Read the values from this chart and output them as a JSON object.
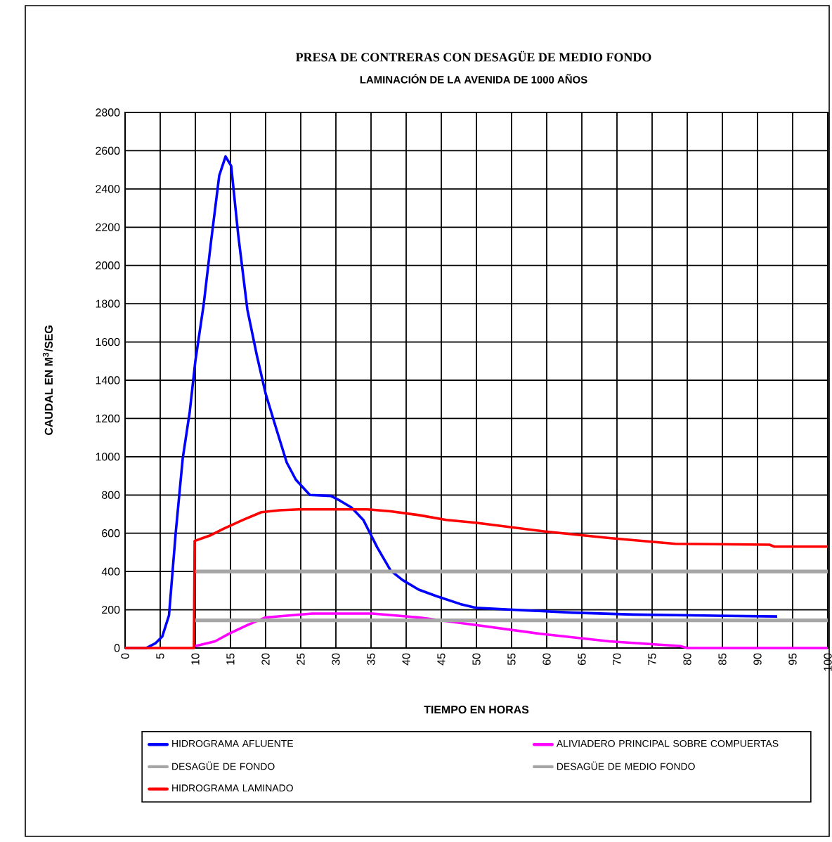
{
  "chart_data": {
    "type": "line",
    "title": "PRESA DE CONTRERAS CON DESAGÜE DE MEDIO FONDO",
    "subtitle": "LAMINACIÓN DE LA AVENIDA DE 1000 AÑOS",
    "xlabel": "TIEMPO EN HORAS",
    "ylabel": "CAUDAL EN M$^{3}$/SEG",
    "xlim": [
      0,
      100
    ],
    "xticks": [
      0,
      5,
      10,
      15,
      20,
      25,
      30,
      35,
      40,
      45,
      50,
      55,
      60,
      65,
      70,
      75,
      80,
      85,
      90,
      95,
      100
    ],
    "ylim": [
      0,
      2800
    ],
    "yticks": [
      0,
      200,
      400,
      600,
      800,
      1000,
      1200,
      1400,
      1600,
      1800,
      2000,
      2200,
      2400,
      2600,
      2800
    ],
    "grid": true,
    "legend": "bottom",
    "marker": "none",
    "line_style": "solid",
    "series": [
      {
        "name": "HIDROGRAMA AFLUENTE",
        "color": "#0000ff",
        "x": [
          0,
          3,
          4.3,
          5.3,
          6.25,
          7.2,
          8.2,
          9.2,
          10,
          11.2,
          12.2,
          13.4,
          14.3,
          15.1,
          16.1,
          17.4,
          18.75,
          20,
          21.4,
          23,
          24.3,
          26.3,
          29.3,
          30.6,
          32.2,
          33.9,
          35.9,
          37.8,
          39.5,
          41.8,
          44.4,
          47.7,
          49.9,
          63.6,
          72.3,
          82.3,
          92.8
        ],
        "values": [
          0,
          0,
          24,
          61,
          171,
          600,
          990,
          1235,
          1500,
          1800,
          2115,
          2470,
          2570,
          2520,
          2160,
          1770,
          1530,
          1330,
          1160,
          970,
          880,
          800,
          795,
          770,
          735,
          670,
          525,
          405,
          355,
          305,
          270,
          230,
          210,
          185,
          175,
          170,
          165
        ]
      },
      {
        "name": "ALIVIADERO PRINCIPAL SOBRE COMPUERTAS",
        "color": "#ff00ff",
        "x": [
          10,
          12.8,
          14.8,
          17.4,
          20,
          26.6,
          35.2,
          41.8,
          49.9,
          58.9,
          68.9,
          79,
          80,
          100
        ],
        "values": [
          10,
          35,
          75,
          120,
          160,
          180,
          180,
          160,
          120,
          75,
          35,
          10,
          0,
          0
        ]
      },
      {
        "name": "DESAGÜE DE FONDO",
        "color": "#a6a6a6",
        "x": [
          10,
          100
        ],
        "values": [
          400,
          400
        ]
      },
      {
        "name": "DESAGÜE DE MEDIO FONDO",
        "color": "#a6a6a6",
        "x": [
          10,
          100
        ],
        "values": [
          145,
          145
        ]
      },
      {
        "name": "HIDROGRAMA LAMINADO",
        "color": "#ff0000",
        "x": [
          0,
          9.8,
          9.9,
          12.2,
          14.1,
          16.8,
          19.4,
          22,
          24.7,
          34.5,
          37.8,
          41.8,
          45.7,
          49.9,
          59.6,
          68.9,
          78.3,
          91.7,
          92.4,
          100
        ],
        "values": [
          0,
          0,
          560,
          590,
          625,
          670,
          710,
          720,
          725,
          725,
          715,
          695,
          670,
          655,
          610,
          575,
          545,
          540,
          530,
          530
        ]
      }
    ]
  }
}
